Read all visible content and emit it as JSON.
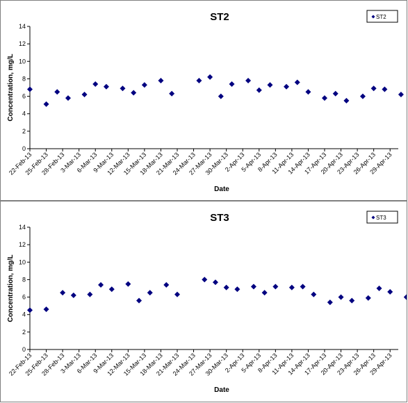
{
  "chart_data": [
    {
      "type": "scatter",
      "title": "ST2",
      "xlabel": "Date",
      "ylabel": "Concentration, mg/L",
      "ylim": [
        0,
        14
      ],
      "yticks": [
        "0",
        "2",
        "4",
        "6",
        "8",
        "10",
        "12",
        "14"
      ],
      "xticks": [
        "22-Feb-13",
        "25-Feb-13",
        "28-Feb-13",
        "3-Mar-13",
        "6-Mar-13",
        "9-Mar-13",
        "12-Mar-13",
        "15-Mar-13",
        "18-Mar-13",
        "21-Mar-13",
        "24-Mar-13",
        "27-Mar-13",
        "30-Mar-13",
        "2-Apr-13",
        "5-Apr-13",
        "8-Apr-13",
        "11-Apr-13",
        "14-Apr-13",
        "17-Apr-13",
        "20-Apr-13",
        "23-Apr-13",
        "26-Apr-13",
        "29-Apr-13"
      ],
      "grid": false,
      "legend_position": "top-right",
      "series": [
        {
          "name": "ST2",
          "color": "#000080",
          "x": [
            "22-Feb-13",
            "25-Feb-13",
            "27-Feb-13",
            "1-Mar-13",
            "4-Mar-13",
            "6-Mar-13",
            "8-Mar-13",
            "11-Mar-13",
            "13-Mar-13",
            "15-Mar-13",
            "18-Mar-13",
            "20-Mar-13",
            "25-Mar-13",
            "27-Mar-13",
            "29-Mar-13",
            "31-Mar-13",
            "3-Apr-13",
            "5-Apr-13",
            "7-Apr-13",
            "10-Apr-13",
            "12-Apr-13",
            "14-Apr-13",
            "17-Apr-13",
            "19-Apr-13",
            "21-Apr-13",
            "24-Apr-13",
            "26-Apr-13",
            "28-Apr-13",
            "1-May-13"
          ],
          "y": [
            6.8,
            5.1,
            6.5,
            5.8,
            6.2,
            7.4,
            7.1,
            6.9,
            6.4,
            7.3,
            7.8,
            6.3,
            7.8,
            8.2,
            6.0,
            7.4,
            7.8,
            6.7,
            7.3,
            7.1,
            7.6,
            6.5,
            5.8,
            6.3,
            5.5,
            6.0,
            6.9,
            6.8,
            6.2
          ]
        }
      ]
    },
    {
      "type": "scatter",
      "title": "ST3",
      "xlabel": "Date",
      "ylabel": "Concentration, mg/L",
      "ylim": [
        0,
        14
      ],
      "yticks": [
        "0",
        "2",
        "4",
        "6",
        "8",
        "10",
        "12",
        "14"
      ],
      "xticks": [
        "22-Feb-13",
        "25-Feb-13",
        "28-Feb-13",
        "3-Mar-13",
        "6-Mar-13",
        "9-Mar-13",
        "12-Mar-13",
        "15-Mar-13",
        "18-Mar-13",
        "21-Mar-13",
        "24-Mar-13",
        "27-Mar-13",
        "30-Mar-13",
        "2-Apr-13",
        "5-Apr-13",
        "8-Apr-13",
        "11-Apr-13",
        "14-Apr-13",
        "17-Apr-13",
        "20-Apr-13",
        "23-Apr-13",
        "26-Apr-13",
        "29-Apr-13"
      ],
      "grid": false,
      "legend_position": "top-right",
      "series": [
        {
          "name": "ST3",
          "color": "#000080",
          "x": [
            "22-Feb-13",
            "25-Feb-13",
            "28-Feb-13",
            "2-Mar-13",
            "5-Mar-13",
            "7-Mar-13",
            "9-Mar-13",
            "12-Mar-13",
            "14-Mar-13",
            "16-Mar-13",
            "19-Mar-13",
            "21-Mar-13",
            "26-Mar-13",
            "28-Mar-13",
            "30-Mar-13",
            "1-Apr-13",
            "4-Apr-13",
            "6-Apr-13",
            "8-Apr-13",
            "11-Apr-13",
            "13-Apr-13",
            "15-Apr-13",
            "18-Apr-13",
            "20-Apr-13",
            "22-Apr-13",
            "25-Apr-13",
            "27-Apr-13",
            "29-Apr-13",
            "2-May-13"
          ],
          "y": [
            4.5,
            4.6,
            6.5,
            6.2,
            6.3,
            7.4,
            6.9,
            7.5,
            5.6,
            6.5,
            7.4,
            6.3,
            8.0,
            7.7,
            7.1,
            6.9,
            7.2,
            6.5,
            7.2,
            7.1,
            7.2,
            6.3,
            5.4,
            6.0,
            5.6,
            5.9,
            7.0,
            6.6,
            6.0
          ]
        }
      ]
    }
  ]
}
